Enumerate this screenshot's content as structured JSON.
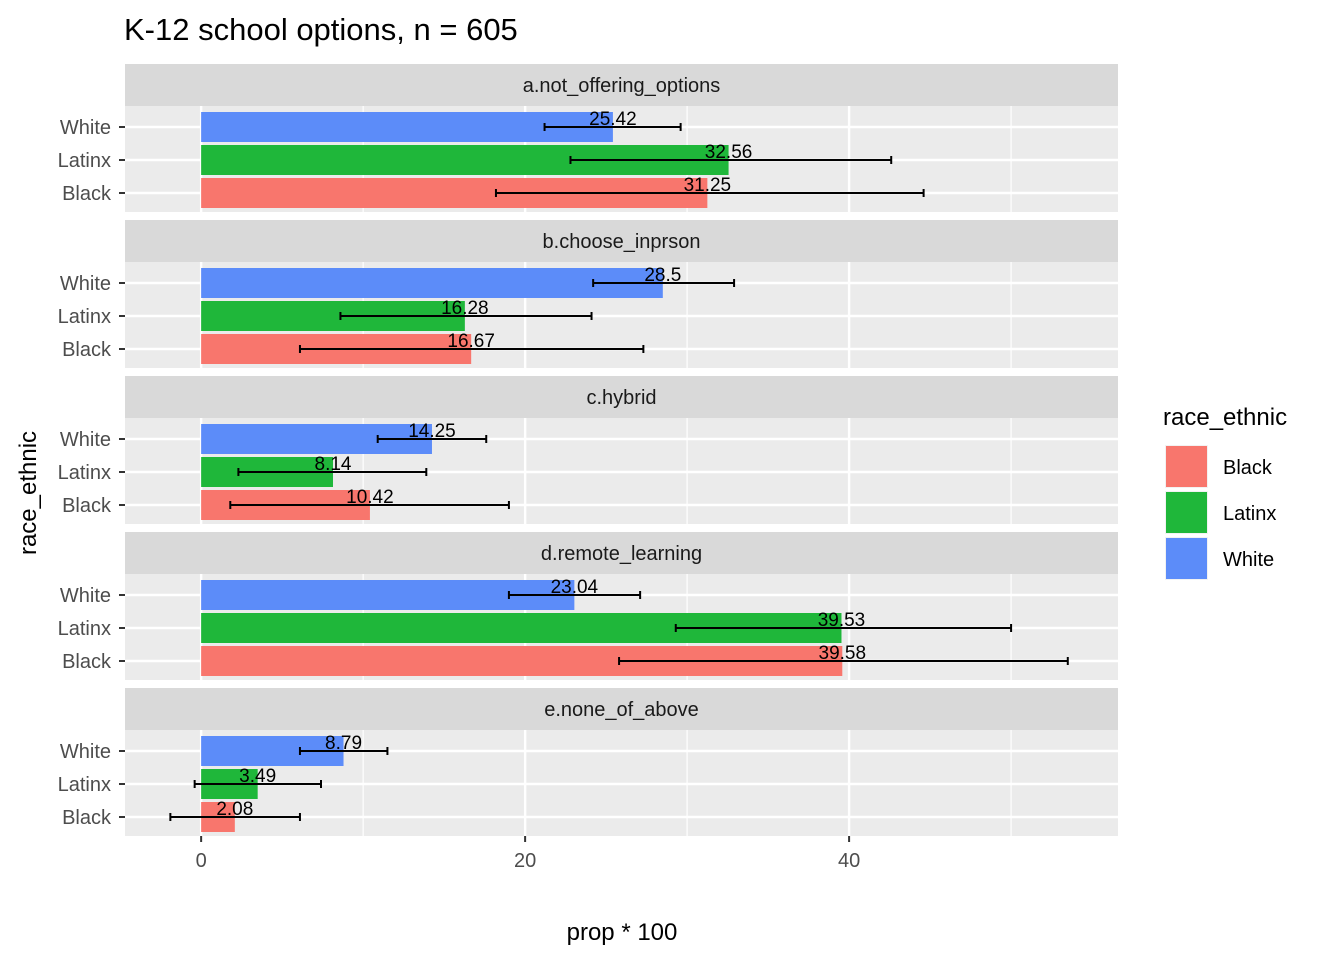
{
  "chart_data": {
    "type": "bar",
    "orientation": "horizontal",
    "title": "K-12 school options, n = 605",
    "xlabel": "prop * 100",
    "ylabel": "race_ethnic",
    "xlim": [
      -4.7,
      56.6
    ],
    "x_ticks": [
      0,
      20,
      40
    ],
    "x_tick_labels": [
      "0",
      "20",
      "40"
    ],
    "x_minor_ticks": [
      10,
      30,
      50
    ],
    "grid": true,
    "categories": [
      "White",
      "Latinx",
      "Black"
    ],
    "legend": {
      "title": "race_ethnic",
      "position": "right",
      "entries": [
        "Black",
        "Latinx",
        "White"
      ]
    },
    "colors": {
      "Black": "#F8766D",
      "Latinx": "#1FB73A",
      "White": "#5C8CF9"
    },
    "facets": [
      {
        "label": "a.not_offering_options",
        "bars": [
          {
            "group": "White",
            "value": 25.42,
            "label": "25.42",
            "ci": [
              21.2,
              29.6
            ]
          },
          {
            "group": "Latinx",
            "value": 32.56,
            "label": "32.56",
            "ci": [
              22.8,
              42.6
            ]
          },
          {
            "group": "Black",
            "value": 31.25,
            "label": "31.25",
            "ci": [
              18.2,
              44.6
            ]
          }
        ]
      },
      {
        "label": "b.choose_inprson",
        "bars": [
          {
            "group": "White",
            "value": 28.5,
            "label": "28.5",
            "ci": [
              24.2,
              32.9
            ]
          },
          {
            "group": "Latinx",
            "value": 16.28,
            "label": "16.28",
            "ci": [
              8.6,
              24.1
            ]
          },
          {
            "group": "Black",
            "value": 16.67,
            "label": "16.67",
            "ci": [
              6.1,
              27.3
            ]
          }
        ]
      },
      {
        "label": "c.hybrid",
        "bars": [
          {
            "group": "White",
            "value": 14.25,
            "label": "14.25",
            "ci": [
              10.9,
              17.6
            ]
          },
          {
            "group": "Latinx",
            "value": 8.14,
            "label": "8.14",
            "ci": [
              2.3,
              13.9
            ]
          },
          {
            "group": "Black",
            "value": 10.42,
            "label": "10.42",
            "ci": [
              1.8,
              19.0
            ]
          }
        ]
      },
      {
        "label": "d.remote_learning",
        "bars": [
          {
            "group": "White",
            "value": 23.04,
            "label": "23.04",
            "ci": [
              19.0,
              27.1
            ]
          },
          {
            "group": "Latinx",
            "value": 39.53,
            "label": "39.53",
            "ci": [
              29.3,
              50.0
            ]
          },
          {
            "group": "Black",
            "value": 39.58,
            "label": "39.58",
            "ci": [
              25.8,
              53.5
            ]
          }
        ]
      },
      {
        "label": "e.none_of_above",
        "bars": [
          {
            "group": "White",
            "value": 8.79,
            "label": "8.79",
            "ci": [
              6.1,
              11.5
            ]
          },
          {
            "group": "Latinx",
            "value": 3.49,
            "label": "3.49",
            "ci": [
              -0.4,
              7.4
            ]
          },
          {
            "group": "Black",
            "value": 2.08,
            "label": "2.08",
            "ci": [
              -1.9,
              6.1
            ]
          }
        ]
      }
    ]
  }
}
